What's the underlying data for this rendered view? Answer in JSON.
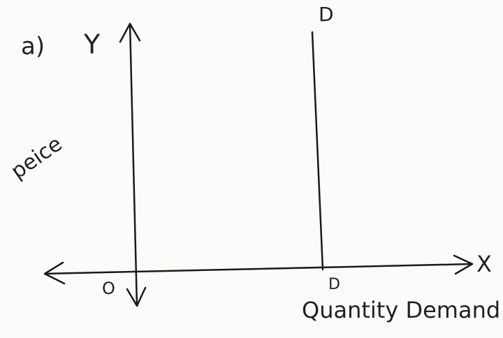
{
  "question_label": "a)",
  "axes": {
    "y_label": "Y",
    "x_label": "X",
    "origin": "O",
    "y_title": "peice",
    "x_title": "Quantity Demand"
  },
  "demand_curve": {
    "top_label": "D",
    "bottom_label": "D"
  }
}
